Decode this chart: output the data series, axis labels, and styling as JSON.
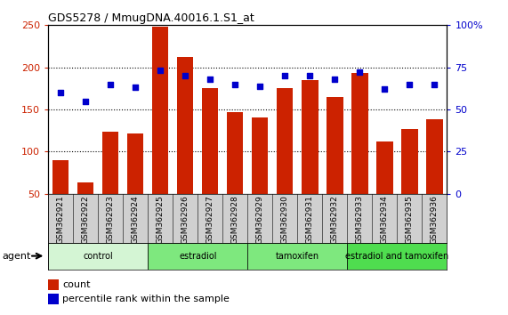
{
  "title": "GDS5278 / MmugDNA.40016.1.S1_at",
  "samples": [
    "GSM362921",
    "GSM362922",
    "GSM362923",
    "GSM362924",
    "GSM362925",
    "GSM362926",
    "GSM362927",
    "GSM362928",
    "GSM362929",
    "GSM362930",
    "GSM362931",
    "GSM362932",
    "GSM362933",
    "GSM362934",
    "GSM362935",
    "GSM362936"
  ],
  "counts": [
    90,
    63,
    124,
    121,
    248,
    212,
    175,
    147,
    140,
    175,
    185,
    165,
    193,
    112,
    127,
    138
  ],
  "percentiles": [
    60,
    55,
    65,
    63,
    73,
    70,
    68,
    65,
    64,
    70,
    70,
    68,
    72,
    62,
    65,
    65
  ],
  "groups": [
    {
      "label": "control",
      "start": 0,
      "end": 4
    },
    {
      "label": "estradiol",
      "start": 4,
      "end": 8
    },
    {
      "label": "tamoxifen",
      "start": 8,
      "end": 12
    },
    {
      "label": "estradiol and tamoxifen",
      "start": 12,
      "end": 16
    }
  ],
  "group_colors": [
    "#d4f5d4",
    "#7ee87e",
    "#7ee87e",
    "#4fdd4f"
  ],
  "bar_color": "#cc2200",
  "dot_color": "#0000cc",
  "ylim_left": [
    50,
    250
  ],
  "ylim_right": [
    0,
    100
  ],
  "yticks_left": [
    50,
    100,
    150,
    200,
    250
  ],
  "ytick_labels_left": [
    "50",
    "100",
    "150",
    "200",
    "250"
  ],
  "yticks_right": [
    0,
    25,
    50,
    75,
    100
  ],
  "ytick_labels_right": [
    "0",
    "25",
    "50",
    "75",
    "100%"
  ],
  "hlines": [
    100,
    150,
    200
  ],
  "legend_count": "count",
  "legend_pct": "percentile rank within the sample",
  "agent_label": "agent",
  "sample_bg_color": "#d0d0d0",
  "title_fontsize": 9
}
